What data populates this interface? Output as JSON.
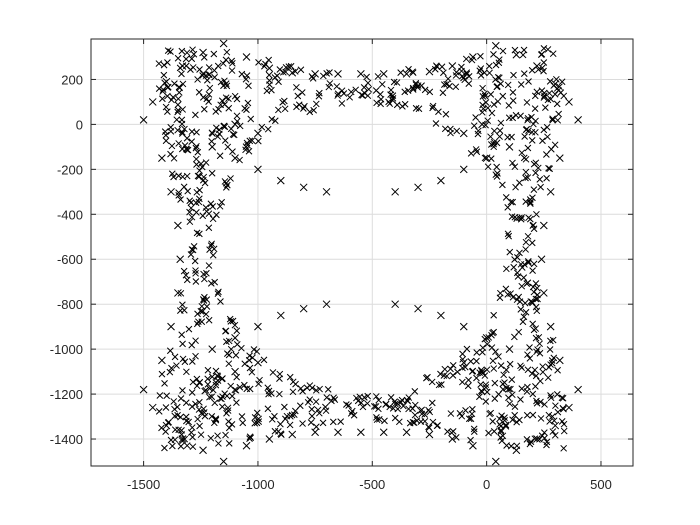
{
  "chart_data": {
    "type": "scatter",
    "title": "",
    "xlabel": "",
    "ylabel": "",
    "xlim": [
      -1730,
      640
    ],
    "ylim": [
      -1520,
      380
    ],
    "xticks": [
      -1500,
      -1000,
      -500,
      0,
      500
    ],
    "xtick_labels": [
      "-1500",
      "-1000",
      "-500",
      "0",
      "500"
    ],
    "yticks": [
      -1400,
      -1200,
      -1000,
      -800,
      -600,
      -400,
      -200,
      0,
      200
    ],
    "ytick_labels": [
      "-1400",
      "-1200",
      "-1000",
      "-800",
      "-600",
      "-400",
      "-200",
      "0",
      "200"
    ],
    "grid": true,
    "legend": "none",
    "marker": "x",
    "color": "#000000",
    "pattern": {
      "description": "four-fold symmetric ring of x markers",
      "center": [
        -550,
        -550
      ],
      "inner_radius": 640,
      "outer_half_width": 850,
      "corners": [
        [
          -1480,
          50
        ],
        [
          390,
          50
        ],
        [
          -1480,
          -1170
        ],
        [
          390,
          -1170
        ]
      ]
    },
    "series": [
      {
        "marker": "x",
        "points": [
          [
            -1500,
            20
          ],
          [
            -1460,
            100
          ],
          [
            -1400,
            190
          ],
          [
            -1330,
            260
          ],
          [
            -1240,
            320
          ],
          [
            -1150,
            360
          ],
          [
            -1050,
            300
          ],
          [
            -950,
            250
          ],
          [
            -850,
            230
          ],
          [
            -750,
            225
          ],
          [
            -650,
            225
          ],
          [
            -550,
            225
          ],
          [
            -450,
            225
          ],
          [
            -350,
            225
          ],
          [
            -250,
            235
          ],
          [
            -150,
            260
          ],
          [
            -60,
            300
          ],
          [
            40,
            350
          ],
          [
            130,
            310
          ],
          [
            220,
            260
          ],
          [
            300,
            180
          ],
          [
            360,
            100
          ],
          [
            400,
            20
          ],
          [
            -1420,
            -150
          ],
          [
            -1380,
            -300
          ],
          [
            -1350,
            -450
          ],
          [
            -1340,
            -600
          ],
          [
            -1350,
            -750
          ],
          [
            -1380,
            -900
          ],
          [
            -1420,
            -1050
          ],
          [
            -1500,
            -1180
          ],
          [
            -1460,
            -1260
          ],
          [
            -1400,
            -1340
          ],
          [
            -1330,
            -1400
          ],
          [
            -1240,
            -1450
          ],
          [
            -1150,
            -1500
          ],
          [
            320,
            -150
          ],
          [
            280,
            -300
          ],
          [
            250,
            -450
          ],
          [
            240,
            -600
          ],
          [
            250,
            -750
          ],
          [
            280,
            -900
          ],
          [
            320,
            -1050
          ],
          [
            400,
            -1180
          ],
          [
            360,
            -1260
          ],
          [
            300,
            -1340
          ],
          [
            220,
            -1400
          ],
          [
            130,
            -1450
          ],
          [
            40,
            -1500
          ],
          [
            -1050,
            -1430
          ],
          [
            -950,
            -1400
          ],
          [
            -850,
            -1380
          ],
          [
            -750,
            -1370
          ],
          [
            -650,
            -1370
          ],
          [
            -550,
            -1370
          ],
          [
            -450,
            -1370
          ],
          [
            -350,
            -1370
          ],
          [
            -250,
            -1380
          ],
          [
            -150,
            -1400
          ],
          [
            -60,
            -1430
          ],
          [
            -1200,
            -100
          ],
          [
            -1100,
            -150
          ],
          [
            -1000,
            -200
          ],
          [
            -900,
            -250
          ],
          [
            -800,
            -280
          ],
          [
            -700,
            -300
          ],
          [
            100,
            -100
          ],
          [
            0,
            -150
          ],
          [
            -100,
            -200
          ],
          [
            -200,
            -250
          ],
          [
            -300,
            -280
          ],
          [
            -400,
            -300
          ],
          [
            -1200,
            -1000
          ],
          [
            -1100,
            -950
          ],
          [
            -1000,
            -900
          ],
          [
            -900,
            -850
          ],
          [
            -800,
            -820
          ],
          [
            -700,
            -800
          ],
          [
            100,
            -1000
          ],
          [
            0,
            -950
          ],
          [
            -100,
            -900
          ],
          [
            -200,
            -850
          ],
          [
            -300,
            -820
          ],
          [
            -400,
            -800
          ],
          [
            -1100,
            0
          ],
          [
            -1000,
            -40
          ],
          [
            -20,
            0
          ],
          [
            -100,
            -40
          ],
          [
            -1100,
            -1100
          ],
          [
            -1000,
            -1060
          ],
          [
            -20,
            -1100
          ],
          [
            -100,
            -1060
          ]
        ]
      }
    ]
  }
}
